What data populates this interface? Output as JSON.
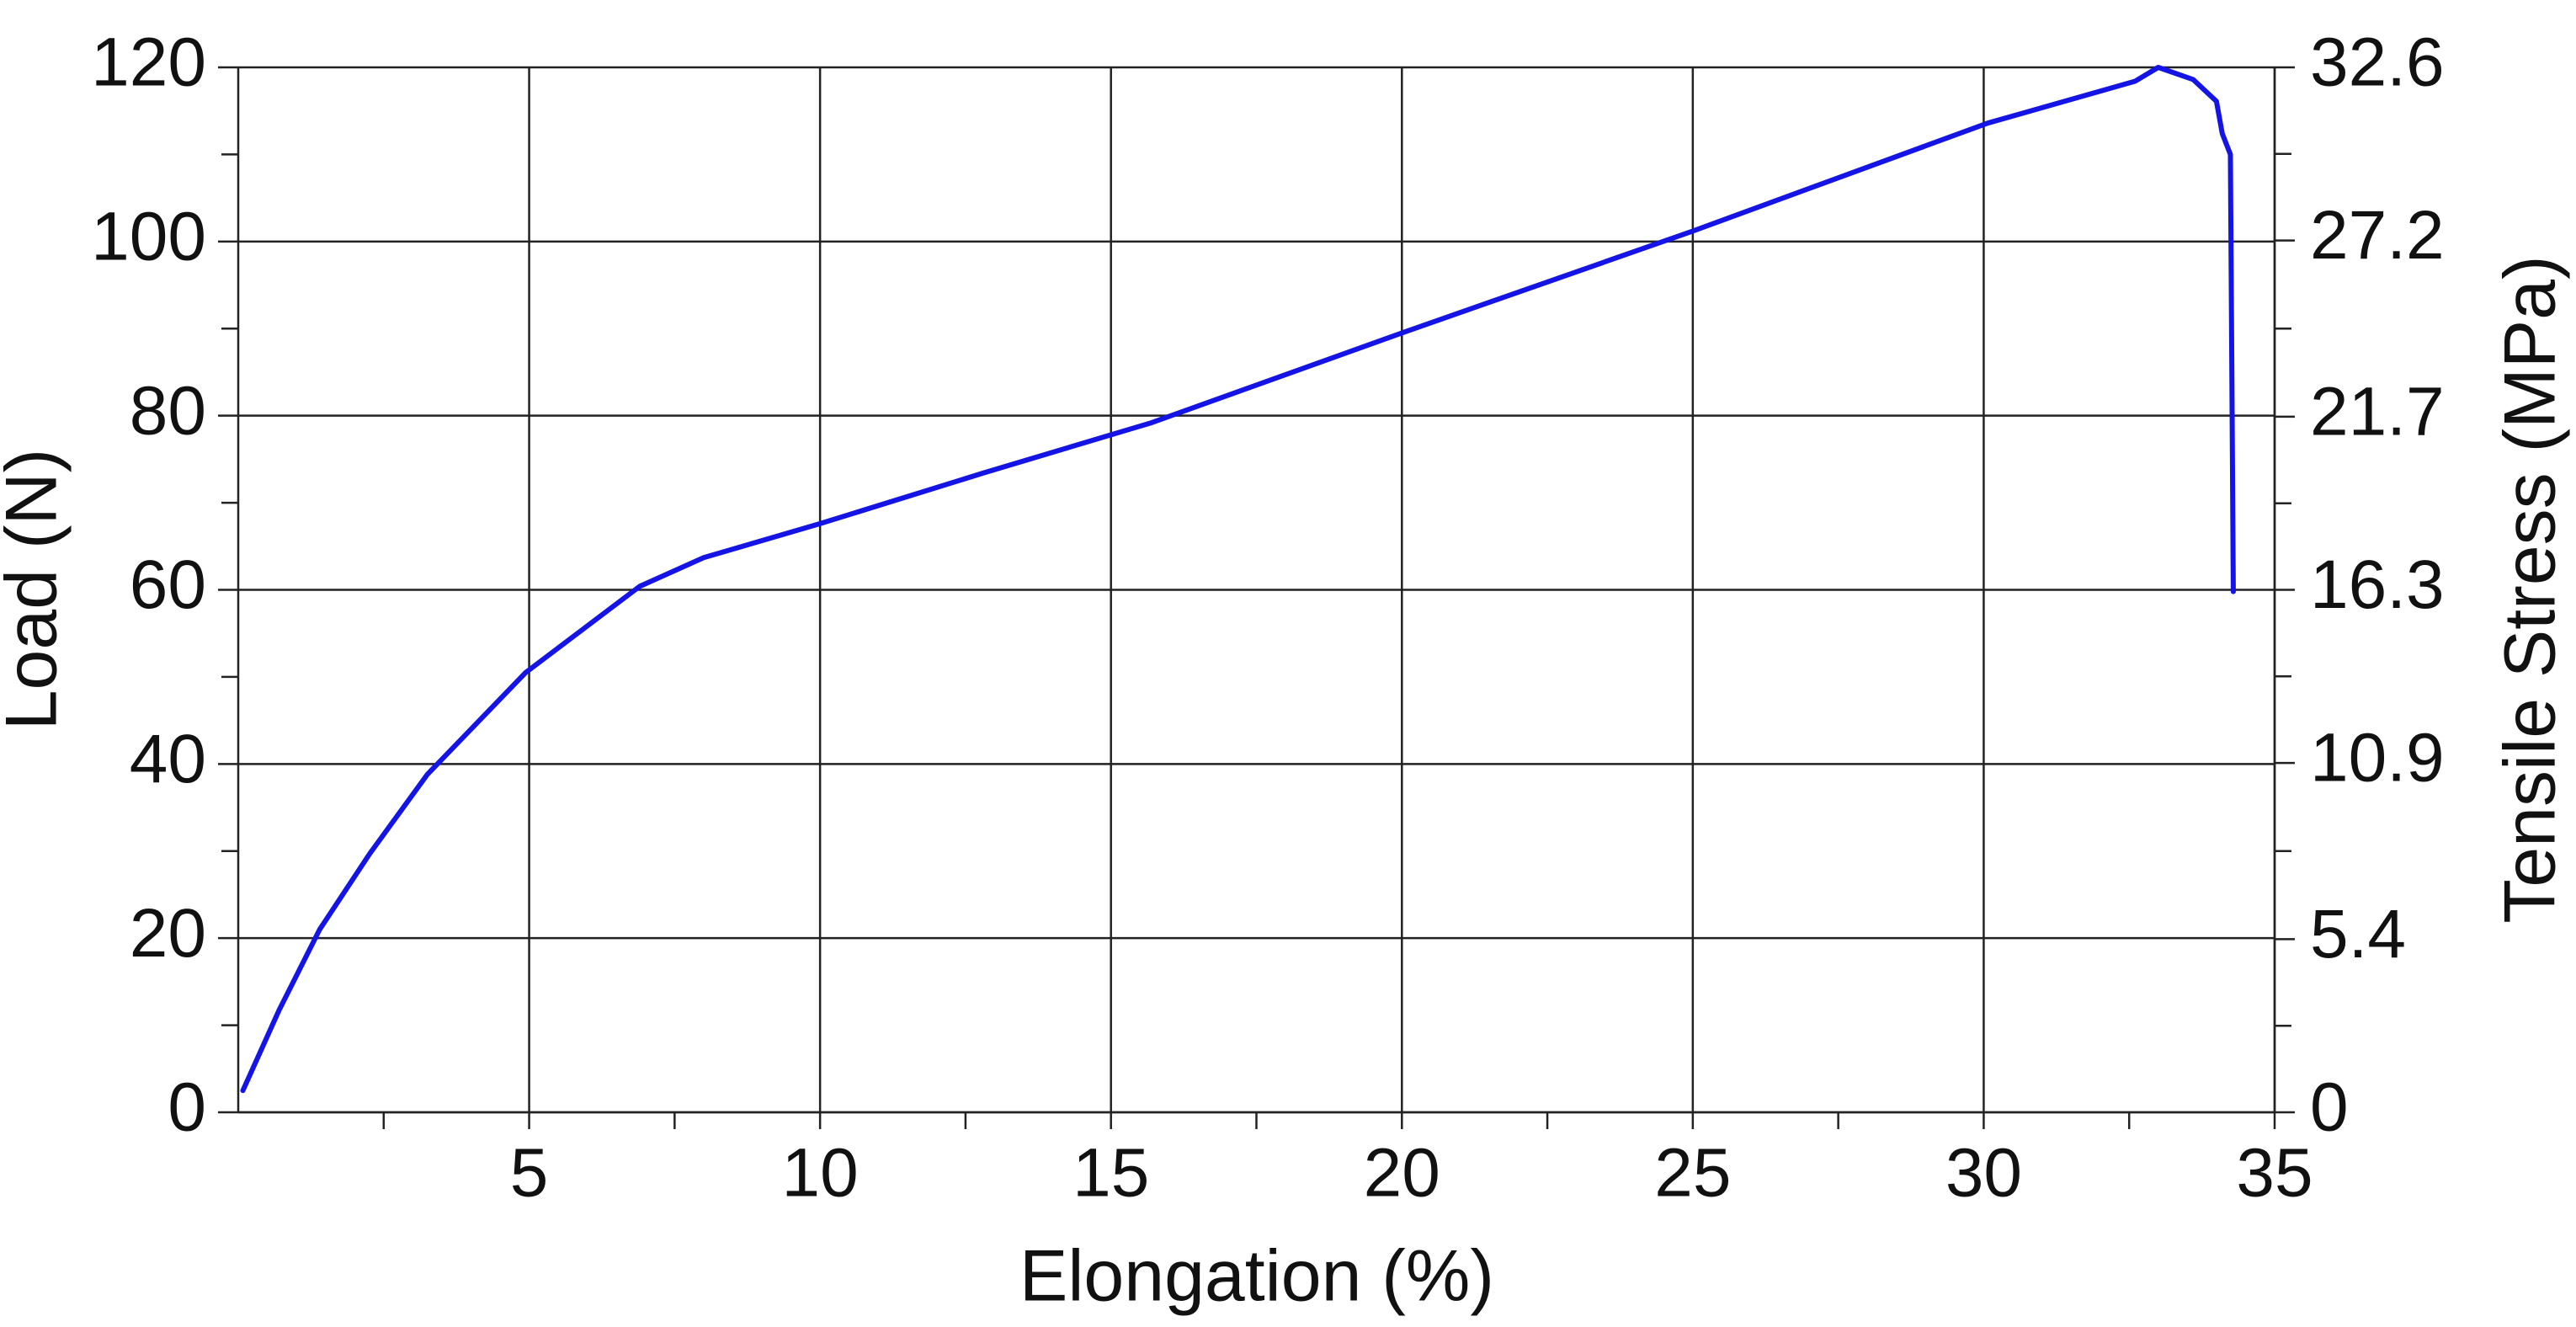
{
  "chart_data": {
    "type": "line",
    "x_label": "Elongation (%)",
    "y_label": "Load (N)",
    "y2_label": "Tensile Stress (MPa)",
    "x": [
      0.08,
      0.7,
      1.4,
      2.26,
      3.25,
      4.94,
      6.9,
      8.0,
      10,
      12.8,
      15.7,
      20,
      25,
      30.07,
      32.6,
      33.0,
      33.6,
      34.0,
      34.1,
      34.24,
      34.29
    ],
    "series": [
      {
        "color": "#1414e6",
        "values": [
          2.5,
          11.7,
          21,
          29.7,
          38.8,
          50.5,
          60.4,
          63.7,
          67.6,
          73.4,
          79.2,
          89.5,
          101.2,
          113.6,
          118.4,
          120,
          118.6,
          116.1,
          112.4,
          110,
          59.8
        ]
      }
    ],
    "xlim": [
      0,
      35
    ],
    "xticks": [
      5,
      10,
      15,
      20,
      25,
      30,
      35
    ],
    "ylim": [
      0,
      120
    ],
    "yticks": [
      0,
      20,
      40,
      60,
      80,
      100,
      120
    ],
    "y2lim": [
      0,
      32.6
    ],
    "y2ticks": [
      0,
      5.4,
      10.9,
      16.3,
      21.7,
      27.2,
      32.6
    ],
    "grid": true
  }
}
